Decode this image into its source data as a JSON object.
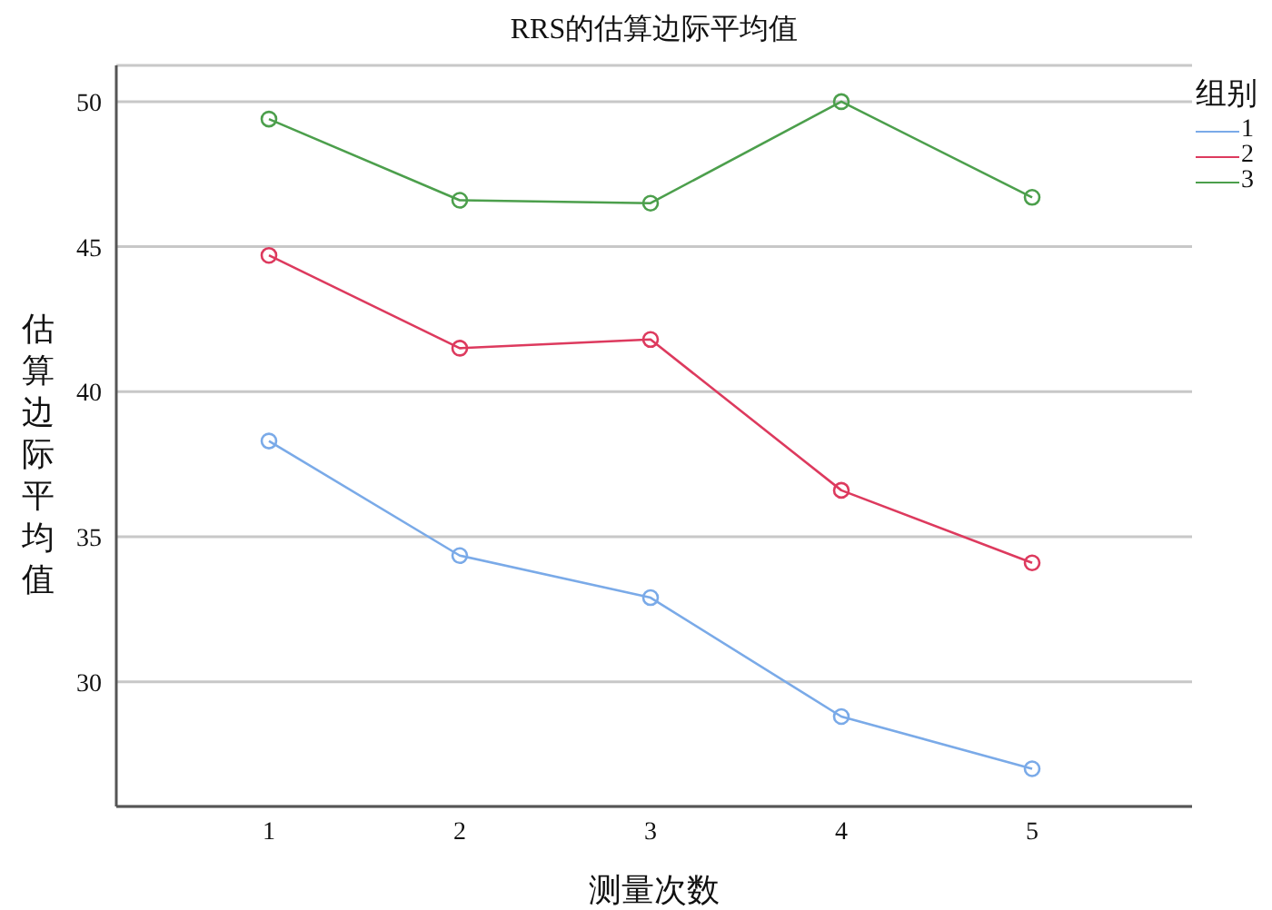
{
  "chart_data": {
    "type": "line",
    "title": "RRS的估算边际平均值",
    "xlabel": "测量次数",
    "ylabel": "估算边际平均值",
    "legend_title": "组别",
    "categories": [
      "1",
      "2",
      "3",
      "4",
      "5"
    ],
    "series": [
      {
        "name": "1",
        "color": "#7aaae8",
        "values": [
          38.3,
          34.35,
          32.9,
          28.8,
          27.0
        ]
      },
      {
        "name": "2",
        "color": "#dd3a5e",
        "values": [
          44.7,
          41.5,
          41.8,
          36.6,
          34.1
        ]
      },
      {
        "name": "3",
        "color": "#4c9f4c",
        "values": [
          49.4,
          46.6,
          46.5,
          50.0,
          46.7
        ]
      }
    ],
    "ylim": [
      25.7,
      51.25
    ],
    "yticks": [
      30,
      35,
      40,
      45,
      50
    ],
    "grid": "y",
    "legend": "top right",
    "marker": "circle",
    "line_style": "solid"
  }
}
